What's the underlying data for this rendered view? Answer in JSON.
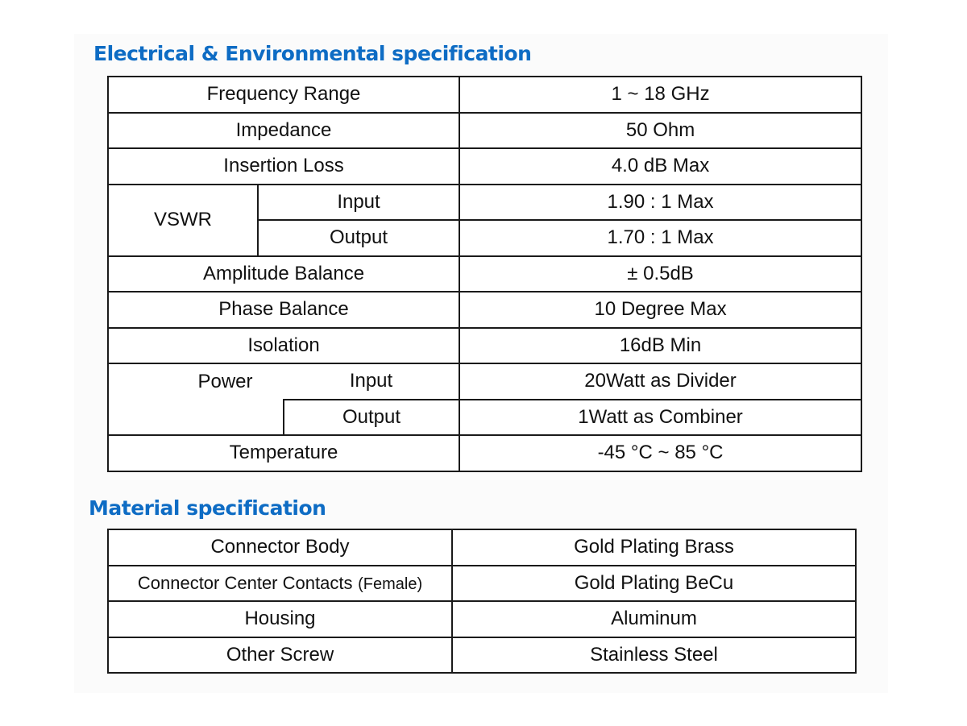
{
  "colors": {
    "heading": "#0e6cc4",
    "border": "#1a1a1a",
    "text": "#111111"
  },
  "electrical": {
    "title": "Electrical & Environmental specification",
    "rows": {
      "frequency_range": {
        "label": "Frequency Range",
        "value": "1 ~ 18 GHz"
      },
      "impedance": {
        "label": "Impedance",
        "value": "50 Ohm"
      },
      "insertion_loss": {
        "label": "Insertion Loss",
        "value": "4.0 dB Max"
      },
      "vswr": {
        "label": "VSWR",
        "input_label": "Input",
        "input_value": "1.90 : 1 Max",
        "output_label": "Output",
        "output_value": "1.70 : 1 Max"
      },
      "amplitude_balance": {
        "label": "Amplitude Balance",
        "value": "± 0.5dB"
      },
      "phase_balance": {
        "label": "Phase Balance",
        "value": "10 Degree Max"
      },
      "isolation": {
        "label": "Isolation",
        "value": "16dB Min"
      },
      "power": {
        "label": "Power",
        "input_label": "Input",
        "input_value": "20Watt as Divider",
        "output_label": "Output",
        "output_value": "1Watt as Combiner"
      },
      "temperature": {
        "label": "Temperature",
        "value": "-45 °C ~ 85 °C"
      }
    }
  },
  "material": {
    "title": "Material specification",
    "rows": [
      {
        "label": "Connector Body",
        "value": "Gold Plating Brass"
      },
      {
        "label": "Connector Center Contacts",
        "label_suffix": "(Female)",
        "value": "Gold Plating BeCu"
      },
      {
        "label": "Housing",
        "value": "Aluminum"
      },
      {
        "label": "Other Screw",
        "value": "Stainless Steel"
      }
    ]
  }
}
